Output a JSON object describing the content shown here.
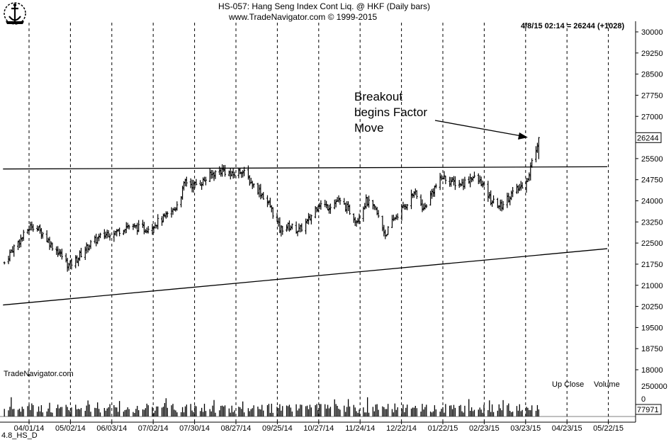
{
  "header": {
    "title": "HS-057:  Hang Seng Index Cont Liq. @ HKF  (Daily bars)",
    "copyright": "www.TradeNavigator.com © 1999-2015",
    "readout": "4/8/15 02:14 = 26244 (+1028)"
  },
  "annotation": {
    "line1": "Breakout",
    "line2": "begins Factor",
    "line3": "Move"
  },
  "watermark": "TradeNavigator.com",
  "volume_legend": {
    "up_close": "Up Close",
    "volume": "Volume"
  },
  "footer_label": "4.8_HS_D",
  "colors": {
    "bars": "#000000",
    "background": "#ffffff",
    "grid": "#000000"
  },
  "chart_data": {
    "type": "ohlc_bar",
    "title": "HS-057:  Hang Seng Index Cont Liq. @ HKF  (Daily bars)",
    "ylim": [
      17700,
      30250
    ],
    "price_ticks": [
      "30000",
      "29250",
      "28500",
      "27750",
      "27000",
      "25500",
      "24750",
      "24000",
      "23250",
      "22500",
      "21750",
      "21000",
      "20250",
      "19500",
      "18750",
      "18000"
    ],
    "last_price_label": "26244",
    "x_labels": [
      "04/01/14",
      "05/02/14",
      "06/03/14",
      "07/02/14",
      "07/30/14",
      "08/27/14",
      "09/25/14",
      "10/27/14",
      "11/24/14",
      "12/22/14",
      "01/22/15",
      "02/23/15",
      "03/23/15",
      "04/23/15",
      "05/22/15"
    ],
    "volume_ticks": [
      "250000",
      "0"
    ],
    "last_volume_label": "77971",
    "grid": "vertical dashed",
    "price_path": [
      [
        "03/14/14",
        21800
      ],
      [
        "03/20/14",
        22300
      ],
      [
        "03/27/14",
        22700
      ],
      [
        "04/03/14",
        23150
      ],
      [
        "04/10/14",
        22900
      ],
      [
        "04/17/14",
        22450
      ],
      [
        "04/24/14",
        22100
      ],
      [
        "04/30/14",
        21700
      ],
      [
        "05/07/14",
        22000
      ],
      [
        "05/14/14",
        22400
      ],
      [
        "05/21/14",
        22650
      ],
      [
        "05/28/14",
        22850
      ],
      [
        "06/04/14",
        22900
      ],
      [
        "06/11/14",
        23100
      ],
      [
        "06/18/14",
        23050
      ],
      [
        "06/25/14",
        23000
      ],
      [
        "07/02/14",
        23200
      ],
      [
        "07/09/14",
        23400
      ],
      [
        "07/16/14",
        23700
      ],
      [
        "07/21/14",
        24200
      ],
      [
        "07/24/14",
        24700
      ],
      [
        "07/30/14",
        24550
      ],
      [
        "08/06/14",
        24700
      ],
      [
        "08/13/14",
        24950
      ],
      [
        "08/20/14",
        25100
      ],
      [
        "08/27/14",
        24900
      ],
      [
        "09/03/14",
        25100
      ],
      [
        "09/10/14",
        24650
      ],
      [
        "09/17/14",
        24300
      ],
      [
        "09/24/14",
        23800
      ],
      [
        "10/01/14",
        23000
      ],
      [
        "10/08/14",
        23100
      ],
      [
        "10/15/14",
        22950
      ],
      [
        "10/22/14",
        23300
      ],
      [
        "10/29/14",
        23900
      ],
      [
        "11/05/14",
        23800
      ],
      [
        "11/12/14",
        24000
      ],
      [
        "11/19/14",
        23750
      ],
      [
        "11/26/14",
        23300
      ],
      [
        "12/03/14",
        24000
      ],
      [
        "12/10/14",
        23650
      ],
      [
        "12/17/14",
        22800
      ],
      [
        "12/24/14",
        23400
      ],
      [
        "12/31/14",
        23800
      ],
      [
        "01/07/15",
        24300
      ],
      [
        "01/14/15",
        23700
      ],
      [
        "01/21/15",
        24400
      ],
      [
        "01/28/15",
        24850
      ],
      [
        "02/04/15",
        24650
      ],
      [
        "02/11/15",
        24600
      ],
      [
        "02/18/15",
        24850
      ],
      [
        "02/25/15",
        24650
      ],
      [
        "03/04/15",
        24000
      ],
      [
        "03/11/15",
        23800
      ],
      [
        "03/18/15",
        24200
      ],
      [
        "03/25/15",
        24450
      ],
      [
        "04/01/15",
        24900
      ],
      [
        "04/02/15",
        25200
      ],
      [
        "04/08/15",
        26244
      ]
    ],
    "overlays": [
      {
        "name": "resistance",
        "points": [
          [
            "03/13/14",
            25130
          ],
          [
            "05/28/15",
            25210
          ]
        ]
      },
      {
        "name": "rising support",
        "points": [
          [
            "03/13/14",
            20300
          ],
          [
            "05/28/15",
            22300
          ]
        ]
      }
    ]
  }
}
